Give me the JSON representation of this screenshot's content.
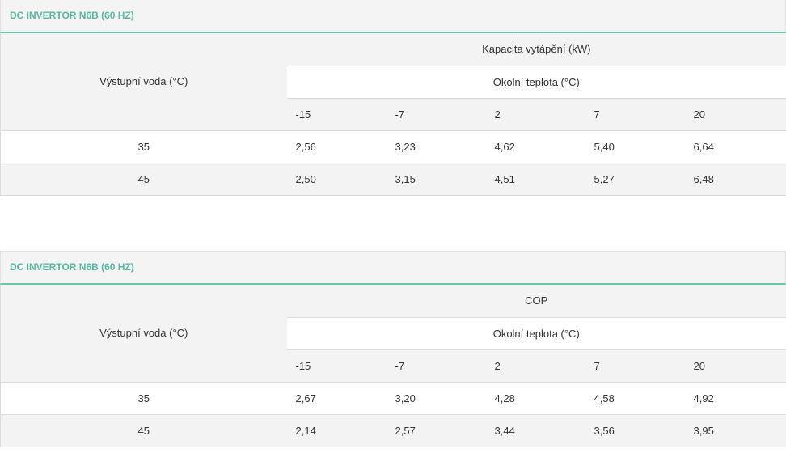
{
  "tables": [
    {
      "title": "DC INVERTOR N6B (60 HZ)",
      "row_header": "Výstupní voda (°C)",
      "main_header": "Kapacita vytápění (kW)",
      "sub_header": "Okolní teplota (°C)",
      "columns": [
        "-15",
        "-7",
        "2",
        "7",
        "20"
      ],
      "rows": [
        {
          "label": "35",
          "values": [
            "2,56",
            "3,23",
            "4,62",
            "5,40",
            "6,64"
          ]
        },
        {
          "label": "45",
          "values": [
            "2,50",
            "3,15",
            "4,51",
            "5,27",
            "6,48"
          ]
        }
      ]
    },
    {
      "title": "DC INVERTOR N6B (60 HZ)",
      "row_header": "Výstupní voda (°C)",
      "main_header": "COP",
      "sub_header": "Okolní teplota (°C)",
      "columns": [
        "-15",
        "-7",
        "2",
        "7",
        "20"
      ],
      "rows": [
        {
          "label": "35",
          "values": [
            "2,67",
            "3,20",
            "4,28",
            "4,58",
            "4,92"
          ]
        },
        {
          "label": "45",
          "values": [
            "2,14",
            "2,57",
            "3,44",
            "3,56",
            "3,95"
          ]
        }
      ]
    }
  ]
}
